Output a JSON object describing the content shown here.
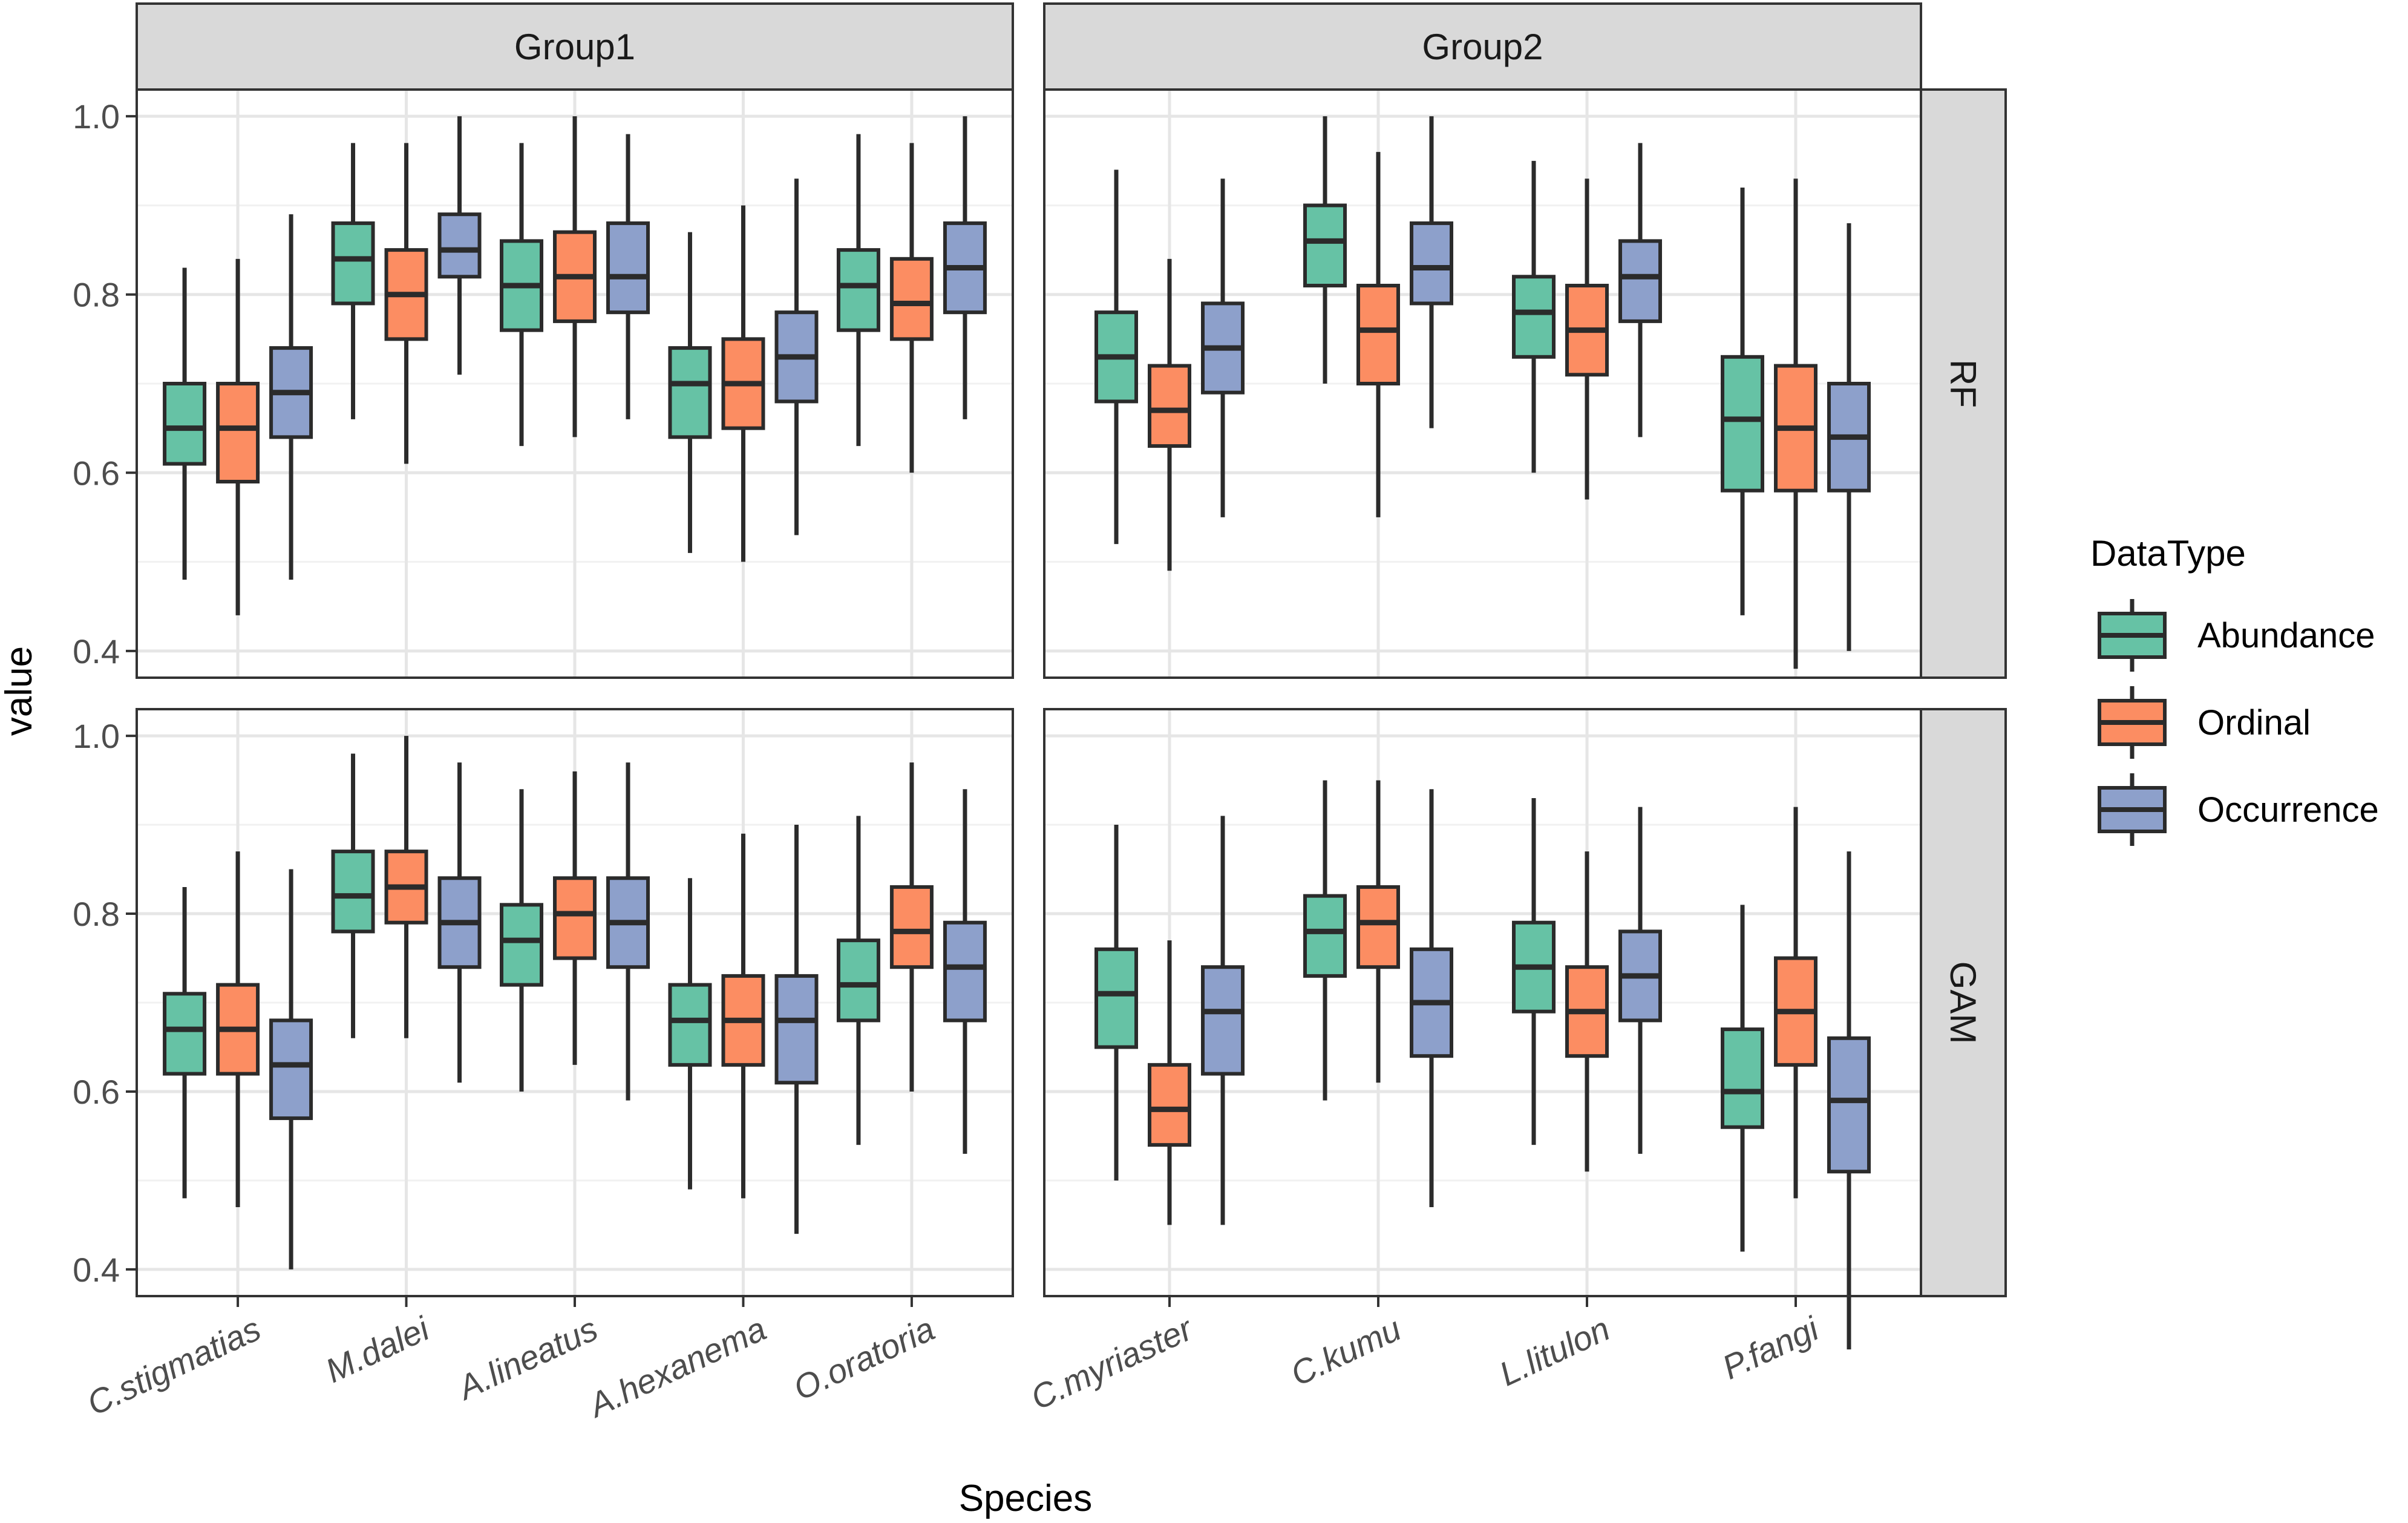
{
  "chart_data": {
    "type": "boxplot",
    "xlabel": "Species",
    "ylabel": "value",
    "ylim": [
      0.37,
      1.03
    ],
    "yticks": [
      0.4,
      0.6,
      0.8,
      1.0
    ],
    "ytick_labels": [
      "0.4",
      "0.6",
      "0.8",
      "1.0"
    ],
    "grid": true,
    "legend": {
      "title": "DataType",
      "position": "right",
      "entries": [
        {
          "name": "Abundance",
          "color": "#66c2a5"
        },
        {
          "name": "Ordinal",
          "color": "#fc8d62"
        },
        {
          "name": "Occurrence",
          "color": "#8da0cb"
        }
      ]
    },
    "facet_columns": [
      {
        "label": "Group1",
        "species": [
          "C.stigmatias",
          "M.dalei",
          "A.lineatus",
          "A.hexanema",
          "O.oratoria"
        ]
      },
      {
        "label": "Group2",
        "species": [
          "C.myriaster",
          "C.kumu",
          "L.litulon",
          "P.fangi"
        ]
      }
    ],
    "facet_rows": [
      "RF",
      "GAM"
    ],
    "series_order": [
      "Abundance",
      "Ordinal",
      "Occurrence"
    ],
    "box_fields": [
      "ymin",
      "q1",
      "median",
      "q3",
      "ymax"
    ],
    "panels": {
      "RF": {
        "Group1": {
          "C.stigmatias": {
            "Abundance": [
              0.48,
              0.61,
              0.65,
              0.7,
              0.83
            ],
            "Ordinal": [
              0.44,
              0.59,
              0.65,
              0.7,
              0.84
            ],
            "Occurrence": [
              0.48,
              0.64,
              0.69,
              0.74,
              0.89
            ]
          },
          "M.dalei": {
            "Abundance": [
              0.66,
              0.79,
              0.84,
              0.88,
              0.97
            ],
            "Ordinal": [
              0.61,
              0.75,
              0.8,
              0.85,
              0.97
            ],
            "Occurrence": [
              0.71,
              0.82,
              0.85,
              0.89,
              1.0
            ]
          },
          "A.lineatus": {
            "Abundance": [
              0.63,
              0.76,
              0.81,
              0.86,
              0.97
            ],
            "Ordinal": [
              0.64,
              0.77,
              0.82,
              0.87,
              1.0
            ],
            "Occurrence": [
              0.66,
              0.78,
              0.82,
              0.88,
              0.98
            ]
          },
          "A.hexanema": {
            "Abundance": [
              0.51,
              0.64,
              0.7,
              0.74,
              0.87
            ],
            "Ordinal": [
              0.5,
              0.65,
              0.7,
              0.75,
              0.9
            ],
            "Occurrence": [
              0.53,
              0.68,
              0.73,
              0.78,
              0.93
            ]
          },
          "O.oratoria": {
            "Abundance": [
              0.63,
              0.76,
              0.81,
              0.85,
              0.98
            ],
            "Ordinal": [
              0.6,
              0.75,
              0.79,
              0.84,
              0.97
            ],
            "Occurrence": [
              0.66,
              0.78,
              0.83,
              0.88,
              1.0
            ]
          }
        },
        "Group2": {
          "C.myriaster": {
            "Abundance": [
              0.52,
              0.68,
              0.73,
              0.78,
              0.94
            ],
            "Ordinal": [
              0.49,
              0.63,
              0.67,
              0.72,
              0.84
            ],
            "Occurrence": [
              0.55,
              0.69,
              0.74,
              0.79,
              0.93
            ]
          },
          "C.kumu": {
            "Abundance": [
              0.7,
              0.81,
              0.86,
              0.9,
              1.0
            ],
            "Ordinal": [
              0.55,
              0.7,
              0.76,
              0.81,
              0.96
            ],
            "Occurrence": [
              0.65,
              0.79,
              0.83,
              0.88,
              1.0
            ]
          },
          "L.litulon": {
            "Abundance": [
              0.6,
              0.73,
              0.78,
              0.82,
              0.95
            ],
            "Ordinal": [
              0.57,
              0.71,
              0.76,
              0.81,
              0.93
            ],
            "Occurrence": [
              0.64,
              0.77,
              0.82,
              0.86,
              0.97
            ]
          },
          "P.fangi": {
            "Abundance": [
              0.44,
              0.58,
              0.66,
              0.73,
              0.92
            ],
            "Ordinal": [
              0.38,
              0.58,
              0.65,
              0.72,
              0.93
            ],
            "Occurrence": [
              0.4,
              0.58,
              0.64,
              0.7,
              0.88
            ]
          }
        }
      },
      "GAM": {
        "Group1": {
          "C.stigmatias": {
            "Abundance": [
              0.48,
              0.62,
              0.67,
              0.71,
              0.83
            ],
            "Ordinal": [
              0.47,
              0.62,
              0.67,
              0.72,
              0.87
            ],
            "Occurrence": [
              0.4,
              0.57,
              0.63,
              0.68,
              0.85
            ]
          },
          "M.dalei": {
            "Abundance": [
              0.66,
              0.78,
              0.82,
              0.87,
              0.98
            ],
            "Ordinal": [
              0.66,
              0.79,
              0.83,
              0.87,
              1.0
            ],
            "Occurrence": [
              0.61,
              0.74,
              0.79,
              0.84,
              0.97
            ]
          },
          "A.lineatus": {
            "Abundance": [
              0.6,
              0.72,
              0.77,
              0.81,
              0.94
            ],
            "Ordinal": [
              0.63,
              0.75,
              0.8,
              0.84,
              0.96
            ],
            "Occurrence": [
              0.59,
              0.74,
              0.79,
              0.84,
              0.97
            ]
          },
          "A.hexanema": {
            "Abundance": [
              0.49,
              0.63,
              0.68,
              0.72,
              0.84
            ],
            "Ordinal": [
              0.48,
              0.63,
              0.68,
              0.73,
              0.89
            ],
            "Occurrence": [
              0.44,
              0.61,
              0.68,
              0.73,
              0.9
            ]
          },
          "O.oratoria": {
            "Abundance": [
              0.54,
              0.68,
              0.72,
              0.77,
              0.91
            ],
            "Ordinal": [
              0.6,
              0.74,
              0.78,
              0.83,
              0.97
            ],
            "Occurrence": [
              0.53,
              0.68,
              0.74,
              0.79,
              0.94
            ]
          }
        },
        "Group2": {
          "C.myriaster": {
            "Abundance": [
              0.5,
              0.65,
              0.71,
              0.76,
              0.9
            ],
            "Ordinal": [
              0.45,
              0.54,
              0.58,
              0.63,
              0.77
            ],
            "Occurrence": [
              0.45,
              0.62,
              0.69,
              0.74,
              0.91
            ]
          },
          "C.kumu": {
            "Abundance": [
              0.59,
              0.73,
              0.78,
              0.82,
              0.95
            ],
            "Ordinal": [
              0.61,
              0.74,
              0.79,
              0.83,
              0.95
            ],
            "Occurrence": [
              0.47,
              0.64,
              0.7,
              0.76,
              0.94
            ]
          },
          "L.litulon": {
            "Abundance": [
              0.54,
              0.69,
              0.74,
              0.79,
              0.93
            ],
            "Ordinal": [
              0.51,
              0.64,
              0.69,
              0.74,
              0.87
            ],
            "Occurrence": [
              0.53,
              0.68,
              0.73,
              0.78,
              0.92
            ]
          },
          "P.fangi": {
            "Abundance": [
              0.42,
              0.56,
              0.6,
              0.67,
              0.81
            ],
            "Ordinal": [
              0.48,
              0.63,
              0.69,
              0.75,
              0.92
            ],
            "Occurrence": [
              0.31,
              0.51,
              0.59,
              0.66,
              0.87
            ]
          }
        }
      }
    }
  }
}
